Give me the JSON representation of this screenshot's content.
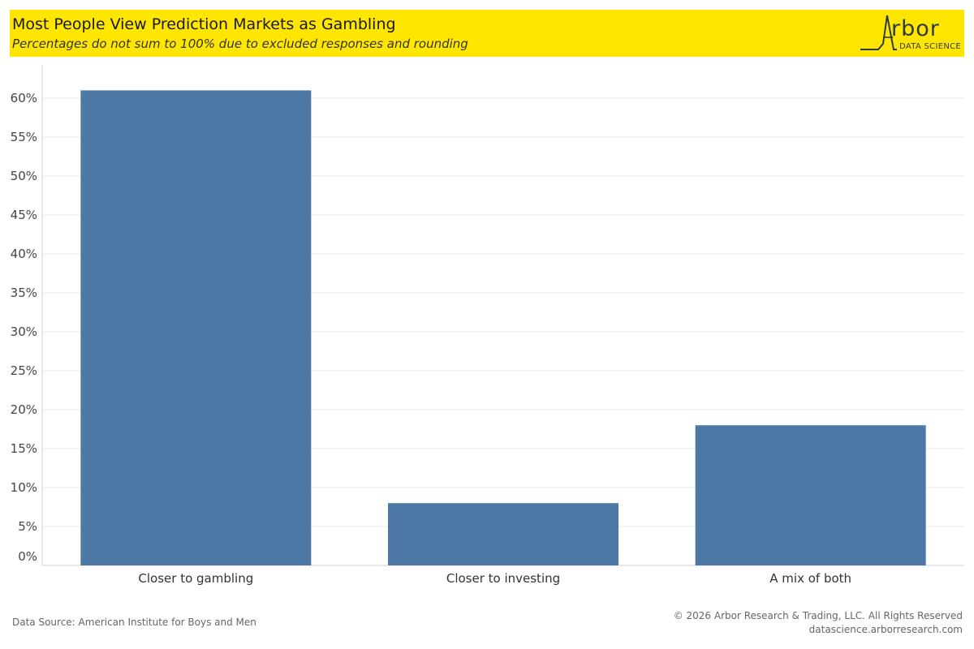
{
  "header": {
    "title": "Most People View Prediction Markets as Gambling",
    "subtitle": "Percentages do not sum to 100% due to excluded responses and rounding"
  },
  "logo": {
    "word": "rbor",
    "sub": "DATA SCIENCE",
    "mark_letter": "A"
  },
  "footer": {
    "source": "Data Source: American Institute for Boys and Men",
    "copyright": "© 2026 Arbor Research & Trading, LLC. All Rights Reserved",
    "url": "datascience.arborresearch.com"
  },
  "colors": {
    "banner": "#FFE600",
    "bar": "#4E79A7",
    "grid": "#EBEBEB",
    "axis": "#D0D0D0"
  },
  "chart_data": {
    "type": "bar",
    "title": "Most People View Prediction Markets as Gambling",
    "subtitle": "Percentages do not sum to 100% due to excluded responses and rounding",
    "categories": [
      "Closer to gambling",
      "Closer to investing",
      "A mix of both"
    ],
    "values": [
      61,
      8,
      18
    ],
    "unit": "%",
    "ylim": [
      0,
      62
    ],
    "yticks": [
      0,
      5,
      10,
      15,
      20,
      25,
      30,
      35,
      40,
      45,
      50,
      55,
      60
    ],
    "ytick_labels": [
      "0%",
      "5%",
      "10%",
      "15%",
      "20%",
      "25%",
      "30%",
      "35%",
      "40%",
      "45%",
      "50%",
      "55%",
      "60%"
    ],
    "grid": true,
    "legend": "none"
  }
}
